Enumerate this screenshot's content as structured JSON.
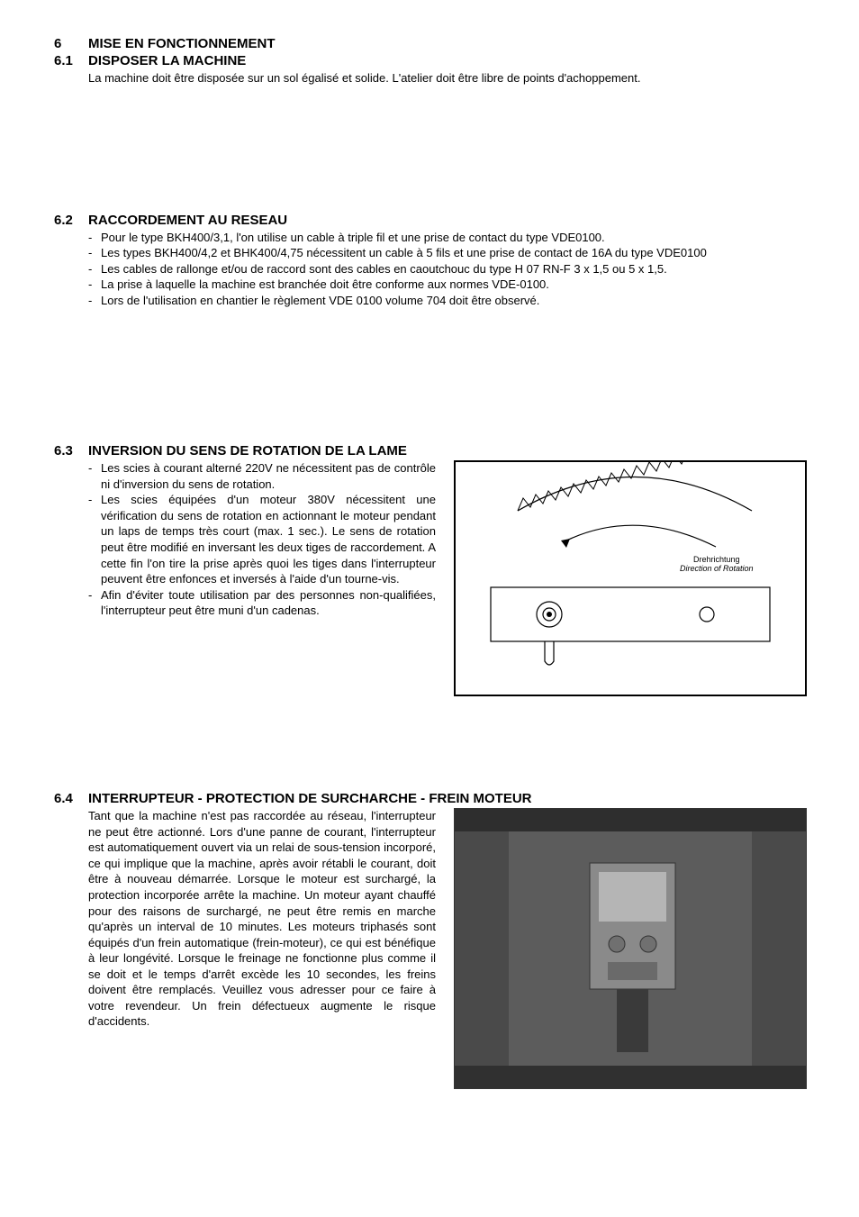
{
  "s6": {
    "num": "6",
    "title": "MISE EN FONCTIONNEMENT"
  },
  "s61": {
    "num": "6.1",
    "title": "DISPOSER LA MACHINE",
    "body": "La machine doit être disposée sur un sol égalisé et solide. L'atelier doit être libre de points d'achoppement."
  },
  "s62": {
    "num": "6.2",
    "title": "RACCORDEMENT AU RESEAU",
    "bullets": [
      "Pour le type BKH400/3,1, l'on utilise un cable à triple fil et une prise de contact du type VDE0100.",
      "Les types BKH400/4,2 et BHK400/4,75 nécessitent un cable à 5 fils et une prise de contact de 16A du type VDE0100",
      "Les cables de rallonge et/ou de raccord sont des cables en caoutchouc du type H 07 RN-F 3 x 1,5 ou 5 x 1,5.",
      "La prise à laquelle la machine est branchée doit être conforme aux normes VDE-0100.",
      "Lors de l'utilisation en chantier le règlement VDE 0100 volume 704 doit être observé."
    ]
  },
  "s63": {
    "num": "6.3",
    "title": "INVERSION DU SENS DE ROTATION DE LA LAME",
    "bullets": [
      "Les scies à courant alterné 220V ne nécessitent pas de contrôle ni d'inversion du sens de rotation.",
      "Les scies équipées d'un moteur 380V nécessitent une vérification du sens de rotation en actionnant le moteur pendant un laps de temps très court (max. 1 sec.). Le sens de rotation peut être modifié en inversant les deux tiges de raccordement. A cette fin l'on tire la prise après quoi les tiges dans l'interrupteur peuvent être enfonces et inversés à l'aide d'un tourne-vis.",
      "Afin d'éviter toute utilisation par des personnes non-qualifiées, l'interrupteur peut être muni d'un cadenas."
    ],
    "diagram": {
      "label1": "Drehrichtung",
      "label2": "Direction of Rotation",
      "stroke": "#000000",
      "fill": "#ffffff",
      "label_fontsize": 9
    }
  },
  "s64": {
    "num": "6.4",
    "title": "INTERRUPTEUR - PROTECTION DE SURCHARCHE - FREIN MOTEUR",
    "body": "Tant que la machine n'est pas raccordée au réseau, l'interrupteur ne peut être actionné. Lors d'une panne de courant, l'interrupteur est automatiquement ouvert via un relai de sous-tension incorporé, ce qui implique que la machine, après avoir rétabli le courant, doit être à nouveau démarrée. Lorsque le moteur est surchargé, la protection incorporée arrête la machine. Un moteur ayant chauffé pour des raisons de surchargé, ne peut être remis en marche qu'après un interval de 10 minutes. Les moteurs triphasés sont équipés d'un frein automatique (frein-moteur), ce qui est bénéfique à leur longévité. Lorsque le freinage ne fonctionne plus comme il se doit et le temps d'arrêt excède les 10 secondes, les freins doivent être remplacés. Veuillez vous adresser pour ce faire à votre revendeur. Un frein défectueux augmente le risque d'accidents.",
    "photo": {
      "bg": "#5a5a5a"
    }
  }
}
